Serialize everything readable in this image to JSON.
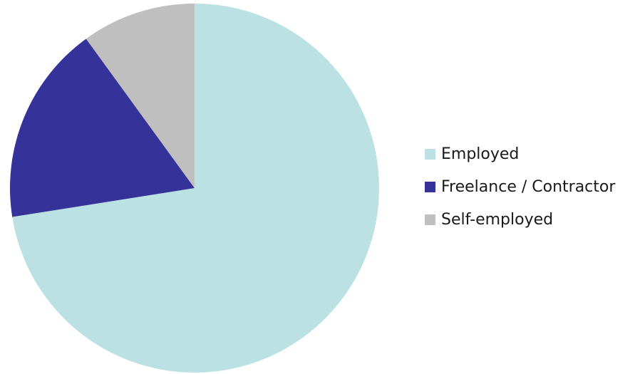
{
  "chart_data": {
    "type": "pie",
    "title": "",
    "start_angle_deg": 0,
    "direction": "clockwise",
    "legend_position": "right",
    "slices": [
      {
        "label": "Employed",
        "value": 72.5,
        "color": "#bbe1e3"
      },
      {
        "label": "Freelance / Contractor",
        "value": 17.5,
        "color": "#353299"
      },
      {
        "label": "Self-employed",
        "value": 10.0,
        "color": "#bfbfbf"
      }
    ]
  },
  "legend": {
    "items": [
      {
        "label": "Employed",
        "color": "#bbe1e3"
      },
      {
        "label": "Freelance / Contractor",
        "color": "#353299"
      },
      {
        "label": "Self-employed",
        "color": "#bfbfbf"
      }
    ]
  }
}
